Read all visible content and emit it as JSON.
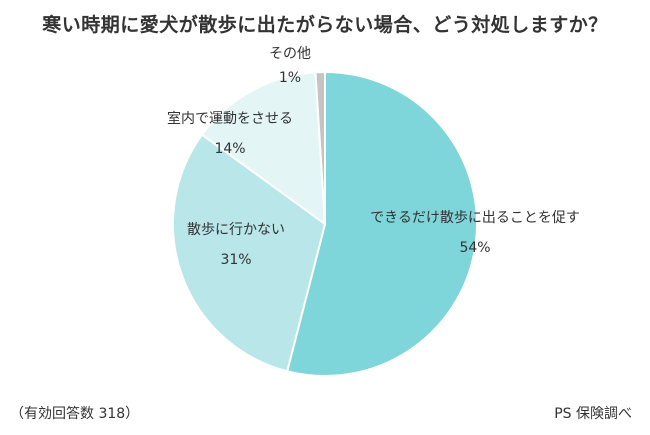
{
  "chart_data": {
    "type": "pie",
    "title": "寒い時期に愛犬が散歩に出たがらない場合、どう対処しますか？",
    "slices": [
      {
        "label": "できるだけ散歩に出ることを促す",
        "value": 54,
        "value_label": "54%",
        "color": "#7fd6da"
      },
      {
        "label": "散歩に行かない",
        "value": 31,
        "value_label": "31%",
        "color": "#b8e6e9"
      },
      {
        "label": "室内で運動をさせる",
        "value": 14,
        "value_label": "14%",
        "color": "#e4f5f6"
      },
      {
        "label": "その他",
        "value": 1,
        "value_label": "1%",
        "color": "#c4c4c4"
      }
    ],
    "start_position": "top",
    "direction": "clockwise",
    "legend": "none"
  },
  "footnote": "（有効回答数 318）",
  "source": "PS 保険調べ"
}
